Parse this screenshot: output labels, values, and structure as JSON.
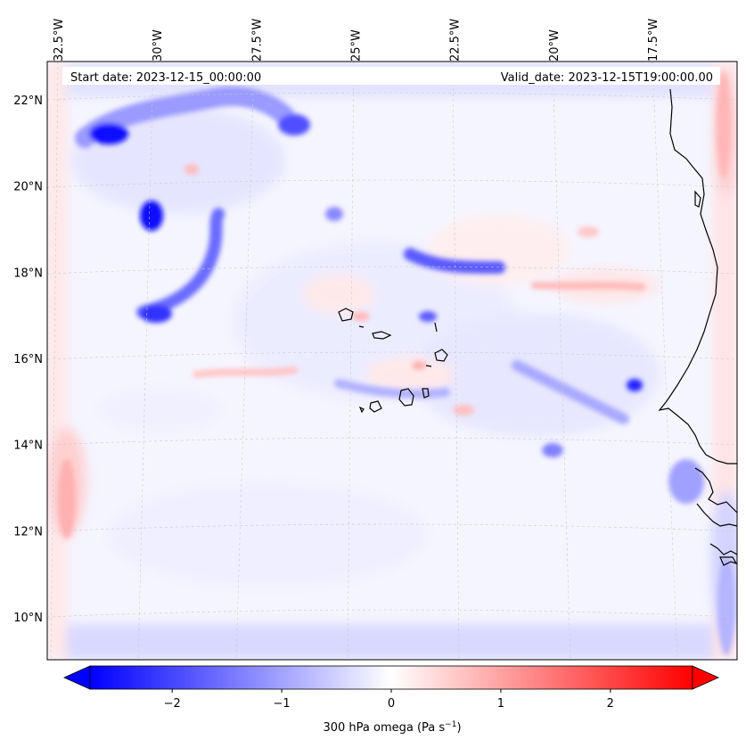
{
  "map": {
    "start_label": "Start date: 2023-12-15_00:00:00",
    "valid_label": "Valid_date: 2023-12-15T19:00:00.00",
    "lon_ticks": [
      {
        "label": "32.5°W",
        "value": -32.5
      },
      {
        "label": "30°W",
        "value": -30
      },
      {
        "label": "27.5°W",
        "value": -27.5
      },
      {
        "label": "25°W",
        "value": -25
      },
      {
        "label": "22.5°W",
        "value": -22.5
      },
      {
        "label": "20°W",
        "value": -20
      },
      {
        "label": "17.5°W",
        "value": -17.5
      }
    ],
    "lat_ticks": [
      {
        "label": "22°N",
        "value": 22
      },
      {
        "label": "20°N",
        "value": 20
      },
      {
        "label": "18°N",
        "value": 18
      },
      {
        "label": "16°N",
        "value": 16
      },
      {
        "label": "14°N",
        "value": 14
      },
      {
        "label": "12°N",
        "value": 12
      },
      {
        "label": "10°N",
        "value": 10
      }
    ]
  },
  "colorbar": {
    "label": "300 hPa omega (Pa s",
    "label_sup": "−1",
    "label_end": ")",
    "min": -2.75,
    "max": 2.75,
    "low_color": "#0000ff",
    "mid_color": "#ffffff",
    "high_color": "#ff0000",
    "ticks": [
      {
        "label": "−2",
        "value": -2
      },
      {
        "label": "−1",
        "value": -1
      },
      {
        "label": "0",
        "value": 0
      },
      {
        "label": "1",
        "value": 1
      },
      {
        "label": "2",
        "value": 2
      }
    ]
  }
}
